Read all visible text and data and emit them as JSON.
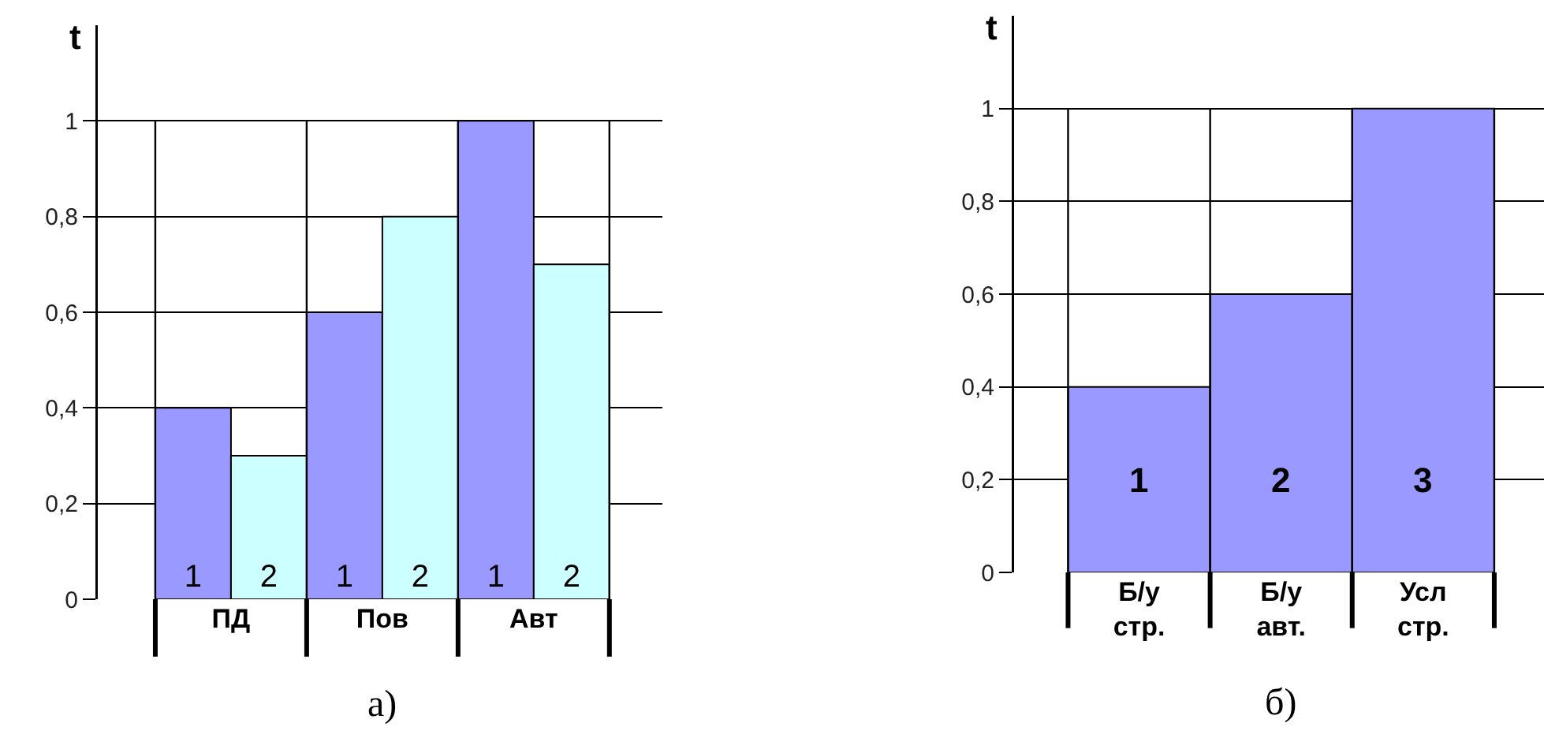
{
  "chart_data": [
    {
      "type": "bar",
      "ylabel": "t",
      "categories": [
        "ПД",
        "Пов",
        "Авт"
      ],
      "series": [
        {
          "name": "1",
          "color": "#9999ff",
          "values": [
            0.4,
            0.6,
            1
          ]
        },
        {
          "name": "2",
          "color": "#ccffff",
          "values": [
            0.3,
            0.8,
            0.7
          ]
        }
      ],
      "ylim": [
        0,
        1.2
      ],
      "yticks": [
        {
          "value": 0,
          "label": "0"
        },
        {
          "value": 0.2,
          "label": "0,2"
        },
        {
          "value": 0.4,
          "label": "0,4"
        },
        {
          "value": 0.6,
          "label": "0,6"
        },
        {
          "value": 0.8,
          "label": "0,8"
        },
        {
          "value": 1,
          "label": "1"
        }
      ],
      "grid": true,
      "legend": false,
      "annotations": [
        "а)"
      ]
    },
    {
      "type": "bar",
      "ylabel": "t",
      "categories": [
        "Б/у стр.",
        "Б/у авт.",
        "Усл стр."
      ],
      "values": [
        0.4,
        0.6,
        1
      ],
      "color": "#9999ff",
      "ylim": [
        0,
        1.2
      ],
      "yticks": [
        {
          "value": 0,
          "label": "0"
        },
        {
          "value": 0.2,
          "label": "0,2"
        },
        {
          "value": 0.4,
          "label": "0,4"
        },
        {
          "value": 0.6,
          "label": "0,6"
        },
        {
          "value": 0.8,
          "label": "0,8"
        },
        {
          "value": 1,
          "label": "1"
        }
      ],
      "grid": true,
      "legend": false,
      "annotations": [
        "1",
        "2",
        "3",
        "б)"
      ]
    }
  ]
}
